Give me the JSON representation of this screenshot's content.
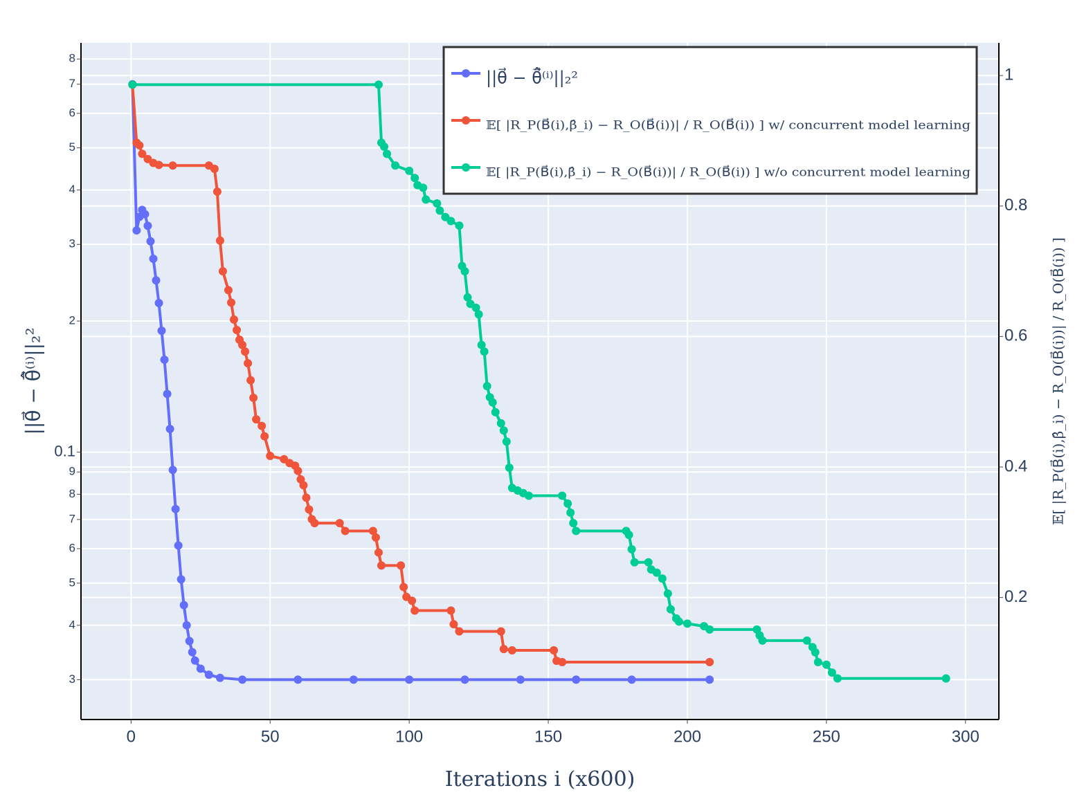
{
  "chart_data": {
    "type": "line",
    "x_label": "Iterations i (x600)",
    "y_label": "||θ⃗ − θ̂⃗⁽ⁱ⁾||₂²",
    "y2_label": "𝔼[ |R_P(B⃗(i),β̂_i) − R_O(B⃗(i))| / R_O(B⃗(i)) ]",
    "xlim": [
      -18,
      312
    ],
    "xticks": [
      0,
      50,
      100,
      150,
      200,
      250,
      300
    ],
    "ylim": [
      0.0243,
      0.871
    ],
    "log_y": true,
    "yticks": [
      {
        "value": 0.03,
        "label": "3"
      },
      {
        "value": 0.04,
        "label": "4"
      },
      {
        "value": 0.05,
        "label": "5"
      },
      {
        "value": 0.06,
        "label": "6"
      },
      {
        "value": 0.07,
        "label": "7"
      },
      {
        "value": 0.08,
        "label": "8"
      },
      {
        "value": 0.09,
        "label": "9"
      },
      0.1,
      {
        "value": 0.2,
        "label": "2"
      },
      {
        "value": 0.3,
        "label": "3"
      },
      {
        "value": 0.4,
        "label": "4"
      },
      {
        "value": 0.5,
        "label": "5"
      },
      {
        "value": 0.6,
        "label": "6"
      },
      {
        "value": 0.7,
        "label": "7"
      },
      {
        "value": 0.8,
        "label": "8"
      }
    ],
    "y2lim": [
      0.013,
      1.05
    ],
    "y2ticks": [
      0.2,
      0.4,
      0.6,
      0.8,
      1
    ],
    "grid": true,
    "legend": "top-right",
    "series": [
      {
        "name": "||θ⃗ − θ̂⃗⁽ⁱ⁾||₂²",
        "color": "#636efa",
        "axis": "y",
        "x": [
          0.5,
          2,
          3,
          4,
          5,
          6,
          7,
          8,
          9,
          10,
          11,
          12,
          13,
          14,
          15,
          16,
          17,
          18,
          19,
          20,
          21,
          22,
          23,
          25,
          28,
          32,
          40,
          60,
          80,
          100,
          120,
          140,
          160,
          180,
          208
        ],
        "values": [
          0.7,
          0.323,
          0.347,
          0.36,
          0.352,
          0.331,
          0.305,
          0.278,
          0.248,
          0.22,
          0.19,
          0.163,
          0.136,
          0.113,
          0.091,
          0.074,
          0.061,
          0.051,
          0.0445,
          0.04,
          0.0368,
          0.0347,
          0.0332,
          0.0318,
          0.0308,
          0.0303,
          0.03,
          0.03,
          0.03,
          0.03,
          0.03,
          0.03,
          0.03,
          0.03,
          0.03
        ]
      },
      {
        "name": "𝔼[ |R_P(B⃗(i),β̂_i) − R_O(B⃗(i))| / R_O(B⃗(i)) ] w/ concurrent model learning",
        "color": "#ef553b",
        "axis": "y2",
        "x": [
          0.5,
          2,
          3,
          4,
          6,
          8,
          10,
          15,
          28,
          30,
          31,
          32,
          33,
          35,
          36,
          37,
          38,
          39,
          40,
          41,
          42,
          43,
          44,
          45,
          47,
          48,
          50,
          55,
          57,
          59,
          60,
          61,
          62,
          63,
          64,
          65,
          66,
          75,
          77,
          87,
          88,
          89,
          90,
          97,
          98,
          99,
          101,
          102,
          115,
          116,
          118,
          133,
          134,
          137,
          152,
          153,
          155,
          208
        ],
        "values": [
          0.986,
          0.897,
          0.893,
          0.88,
          0.872,
          0.866,
          0.863,
          0.862,
          0.862,
          0.857,
          0.822,
          0.747,
          0.7,
          0.671,
          0.652,
          0.626,
          0.61,
          0.595,
          0.587,
          0.577,
          0.559,
          0.533,
          0.506,
          0.473,
          0.463,
          0.447,
          0.417,
          0.412,
          0.406,
          0.402,
          0.394,
          0.381,
          0.372,
          0.353,
          0.335,
          0.32,
          0.314,
          0.314,
          0.302,
          0.302,
          0.292,
          0.269,
          0.249,
          0.249,
          0.216,
          0.201,
          0.195,
          0.18,
          0.18,
          0.159,
          0.148,
          0.148,
          0.121,
          0.119,
          0.119,
          0.103,
          0.101,
          0.101
        ]
      },
      {
        "name": "𝔼[ |R_P(B⃗(i),β̂_i) − R_O(B⃗(i))| / R_O(B⃗(i)) ] w/o concurrent model learning",
        "color": "#00cc96",
        "axis": "y2",
        "x": [
          0.5,
          89,
          90,
          91,
          92,
          95,
          100,
          102,
          103,
          105,
          106,
          110,
          111,
          113,
          115,
          118,
          119,
          120,
          121,
          122,
          124,
          125,
          126,
          127,
          128,
          129,
          130,
          131,
          133,
          134,
          135,
          136,
          137,
          139,
          141,
          143,
          155,
          157,
          158,
          159,
          160,
          178,
          179,
          180,
          181,
          186,
          187,
          189,
          191,
          193,
          194,
          196,
          197,
          200,
          206,
          208,
          225,
          226,
          227,
          243,
          245,
          246,
          247,
          250,
          252,
          254,
          293
        ],
        "values": [
          0.986,
          0.986,
          0.897,
          0.891,
          0.88,
          0.862,
          0.854,
          0.843,
          0.832,
          0.828,
          0.81,
          0.804,
          0.793,
          0.783,
          0.777,
          0.77,
          0.708,
          0.7,
          0.66,
          0.65,
          0.644,
          0.634,
          0.587,
          0.577,
          0.524,
          0.507,
          0.499,
          0.484,
          0.467,
          0.456,
          0.439,
          0.399,
          0.368,
          0.364,
          0.36,
          0.356,
          0.356,
          0.344,
          0.33,
          0.314,
          0.302,
          0.302,
          0.296,
          0.274,
          0.254,
          0.254,
          0.243,
          0.238,
          0.229,
          0.206,
          0.182,
          0.168,
          0.163,
          0.16,
          0.156,
          0.151,
          0.151,
          0.142,
          0.134,
          0.134,
          0.124,
          0.116,
          0.101,
          0.097,
          0.085,
          0.076,
          0.076
        ]
      }
    ]
  }
}
